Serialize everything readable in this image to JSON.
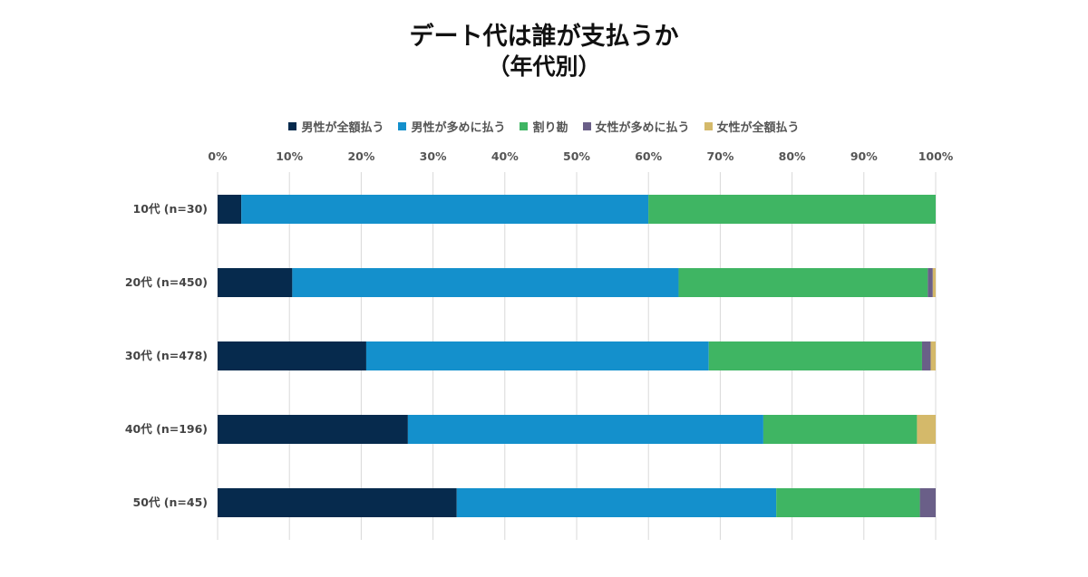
{
  "title_line1": "デート代は誰が支払うか",
  "title_line2": "（年代別）",
  "chart_data": {
    "type": "bar",
    "orientation": "horizontal",
    "stacked": "percent",
    "categories": [
      "10代 (n=30)",
      "20代 (n=450)",
      "30代 (n=478)",
      "40代 (n=196)",
      "50代 (n=45)"
    ],
    "x_ticks": [
      "0%",
      "10%",
      "20%",
      "30%",
      "40%",
      "50%",
      "60%",
      "70%",
      "80%",
      "90%",
      "100%"
    ],
    "xlim": [
      0,
      100
    ],
    "grid": true,
    "legend_position": "top",
    "series": [
      {
        "name": "男性が全額払う",
        "color": "#062a4d",
        "values": [
          3.3,
          10.4,
          20.7,
          26.5,
          33.3
        ]
      },
      {
        "name": "男性が多めに払う",
        "color": "#1490cc",
        "values": [
          56.7,
          53.8,
          47.7,
          49.5,
          44.5
        ]
      },
      {
        "name": "割り勘",
        "color": "#3fb563",
        "values": [
          40.0,
          34.7,
          29.7,
          21.4,
          20.0
        ]
      },
      {
        "name": "女性が多めに払う",
        "color": "#6a5f88",
        "values": [
          0.0,
          0.7,
          1.2,
          0.0,
          2.2
        ]
      },
      {
        "name": "女性が全額払う",
        "color": "#d4b96a",
        "values": [
          0.0,
          0.4,
          0.7,
          2.6,
          0.0
        ]
      }
    ]
  }
}
